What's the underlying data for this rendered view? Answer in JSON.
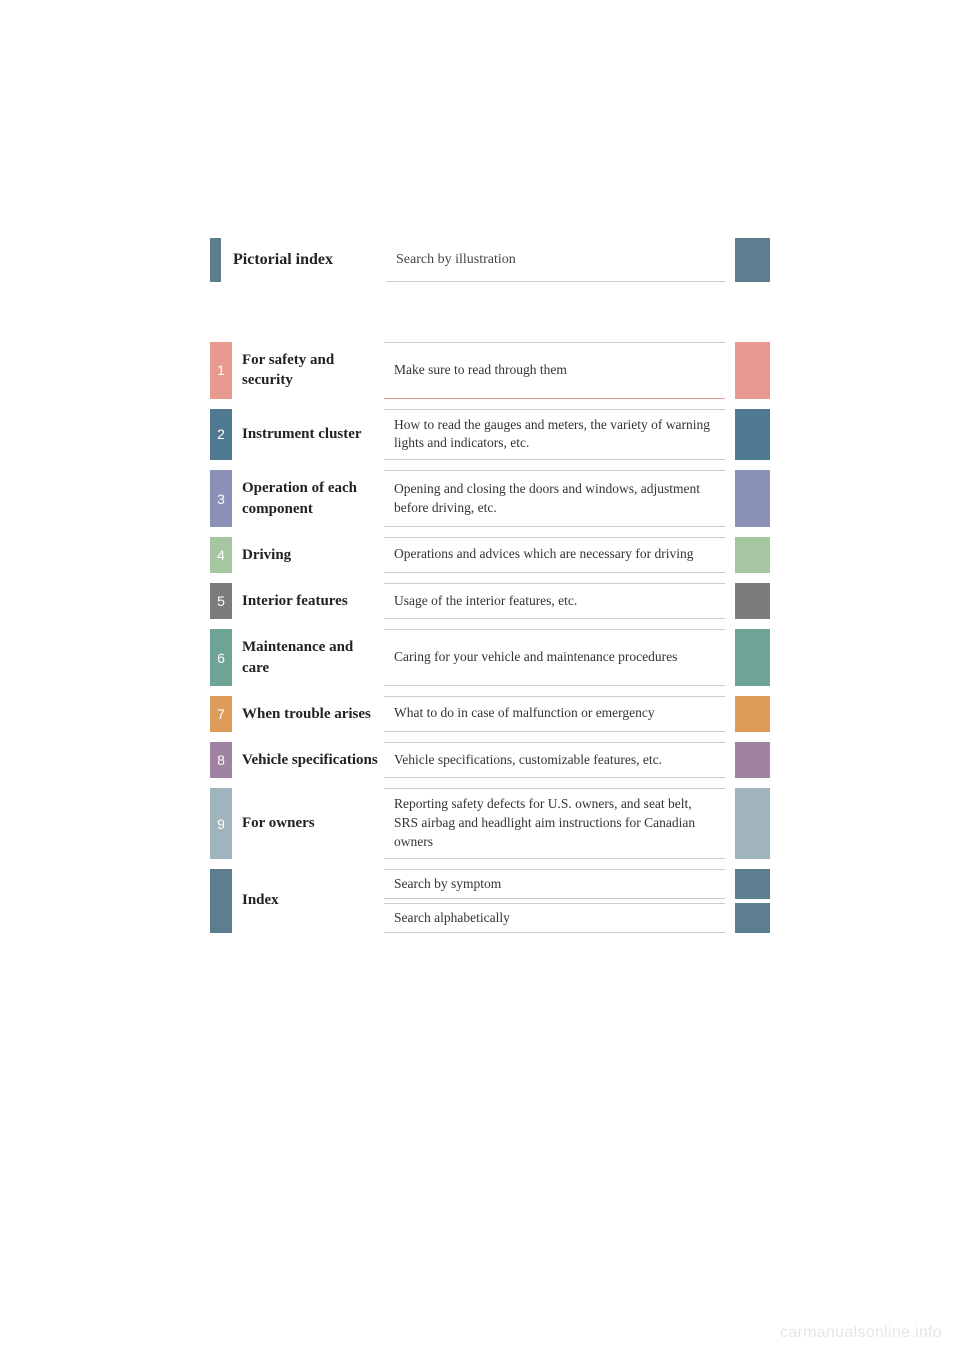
{
  "header": {
    "title": "Pictorial index",
    "desc": "Search by illustration",
    "tab_color": "#5d7e8e",
    "right_color": "#5d7e8e"
  },
  "sections": [
    {
      "num": "1",
      "title": "For safety and security",
      "desc": "Make sure to read through them",
      "num_bg": "#e89a91",
      "right_bg": "#e89a91"
    },
    {
      "num": "2",
      "title": "Instrument cluster",
      "desc": "How to read the gauges and meters, the variety of warning lights and indicators, etc.",
      "num_bg": "#4f7a92",
      "right_bg": "#4f7a92"
    },
    {
      "num": "3",
      "title": "Operation of each component",
      "desc": "Opening and closing the doors and windows, adjustment before driving, etc.",
      "num_bg": "#8a91b8",
      "right_bg": "#8a91b8"
    },
    {
      "num": "4",
      "title": "Driving",
      "desc": "Operations and advices which are necessary for driving",
      "num_bg": "#a5c6a1",
      "right_bg": "#a5c6a1"
    },
    {
      "num": "5",
      "title": "Interior features",
      "desc": "Usage of the interior features, etc.",
      "num_bg": "#7c7c7c",
      "right_bg": "#7c7c7c"
    },
    {
      "num": "6",
      "title": "Maintenance and care",
      "desc": "Caring for your vehicle and maintenance procedures",
      "num_bg": "#6ea496",
      "right_bg": "#6ea496"
    },
    {
      "num": "7",
      "title": "When trouble arises",
      "desc": "What to do in case of malfunction or emergency",
      "num_bg": "#de9c5a",
      "right_bg": "#de9c5a"
    },
    {
      "num": "8",
      "title": "Vehicle specifications",
      "desc": "Vehicle specifications, customizable features, etc.",
      "num_bg": "#a083a3",
      "right_bg": "#a083a3"
    },
    {
      "num": "9",
      "title": "For owners",
      "desc": "Reporting safety defects for U.S. owners, and seat belt, SRS airbag and headlight aim instructions for Canadian owners",
      "num_bg": "#9fb4bd",
      "right_bg": "#9fb4bd"
    }
  ],
  "index": {
    "tab_color": "#5d7e8e",
    "title": "Index",
    "rows": [
      {
        "desc": "Search by symptom",
        "right_bg": "#5d7e8e"
      },
      {
        "desc": "Search alphabetically",
        "right_bg": "#5d7e8e"
      }
    ]
  },
  "watermark": "carmanualsonline.info"
}
